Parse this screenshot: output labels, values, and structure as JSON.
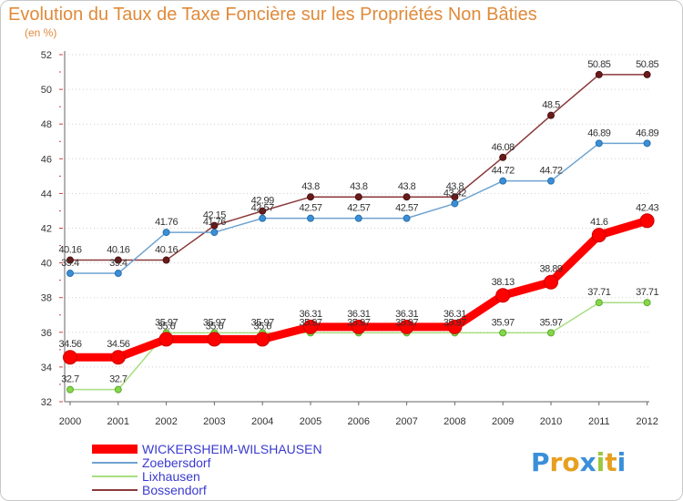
{
  "title": "Evolution du Taux de Taxe Foncière sur les Propriétés Non Bâties",
  "subtitle": "(en %)",
  "brand": {
    "letters": [
      {
        "ch": "P",
        "color": "#3a8fd8"
      },
      {
        "ch": "r",
        "color": "#e6a020"
      },
      {
        "ch": "o",
        "color": "#e6a020"
      },
      {
        "ch": "x",
        "color": "#3a8fd8"
      },
      {
        "ch": "i",
        "color": "#9ac840"
      },
      {
        "ch": "t",
        "color": "#e6a020"
      },
      {
        "ch": "i",
        "color": "#3a8fd8"
      }
    ]
  },
  "chart_data": {
    "type": "line",
    "title": "Evolution du Taux de Taxe Foncière sur les Propriétés Non Bâties",
    "ylabel": "(en %)",
    "x": [
      "2000",
      "2001",
      "2002",
      "2003",
      "2004",
      "2005",
      "2006",
      "2007",
      "2008",
      "2009",
      "2010",
      "2011",
      "2012"
    ],
    "ylim": [
      32,
      52
    ],
    "yticks": [
      "32",
      "34",
      "36",
      "38",
      "40",
      "42",
      "44",
      "46",
      "48",
      "50",
      "52"
    ],
    "grid": "horizontal dotted",
    "legend_position": "bottom-left",
    "series": [
      {
        "name": "WICKERSHEIM-WILSHAUSEN",
        "color": "#ff0000",
        "values": [
          34.56,
          34.56,
          35.6,
          35.6,
          35.6,
          36.31,
          36.31,
          36.31,
          36.31,
          38.13,
          38.89,
          41.6,
          42.43
        ],
        "labels": [
          "34.56",
          "34.56",
          "35.6",
          "35.6",
          "35.6",
          "36.31",
          "36.31",
          "36.31",
          "36.31",
          "38.13",
          "38.89",
          "41.6",
          "42.43"
        ]
      },
      {
        "name": "Zoebersdorf",
        "color": "#6fa3d0",
        "values": [
          39.4,
          39.4,
          41.76,
          41.76,
          42.57,
          42.57,
          42.57,
          42.57,
          43.42,
          44.72,
          44.72,
          46.89,
          46.89
        ],
        "labels": [
          "39.4",
          "39.4",
          "41.76",
          "41.76",
          "42.57",
          "42.57",
          "42.57",
          "42.57",
          "43.42",
          "44.72",
          "44.72",
          "46.89",
          "46.89"
        ]
      },
      {
        "name": "Lixhausen",
        "color": "#a8de80",
        "values": [
          32.7,
          32.7,
          35.97,
          35.97,
          35.97,
          35.97,
          35.97,
          35.97,
          35.97,
          35.97,
          35.97,
          37.71,
          37.71
        ],
        "labels": [
          "32.7",
          "32.7",
          "35.97",
          "35.97",
          "35.97",
          "35.97",
          "35.97",
          "35.97",
          "35.97",
          "35.97",
          "35.97",
          "37.71",
          "37.71"
        ]
      },
      {
        "name": "Bossendorf",
        "color": "#8b3a3a",
        "values": [
          40.16,
          40.16,
          40.16,
          42.15,
          42.99,
          43.8,
          43.8,
          43.8,
          43.8,
          46.08,
          48.5,
          50.85,
          50.85
        ],
        "labels": [
          "40.16",
          "40.16",
          "40.16",
          "42.15",
          "42.99",
          "43.8",
          "43.8",
          "43.8",
          "43.8",
          "46.08",
          "48.5",
          "50.85",
          "50.85"
        ]
      }
    ]
  }
}
